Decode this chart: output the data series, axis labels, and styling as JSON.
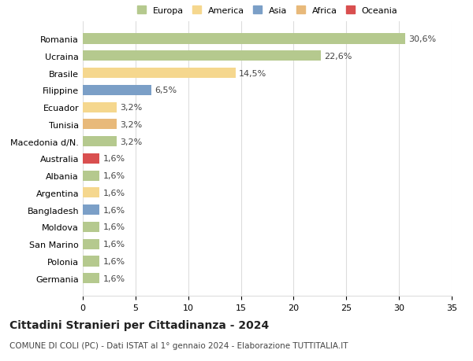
{
  "countries": [
    "Romania",
    "Ucraina",
    "Brasile",
    "Filippine",
    "Ecuador",
    "Tunisia",
    "Macedonia d/N.",
    "Australia",
    "Albania",
    "Argentina",
    "Bangladesh",
    "Moldova",
    "San Marino",
    "Polonia",
    "Germania"
  ],
  "values": [
    30.6,
    22.6,
    14.5,
    6.5,
    3.2,
    3.2,
    3.2,
    1.6,
    1.6,
    1.6,
    1.6,
    1.6,
    1.6,
    1.6,
    1.6
  ],
  "labels": [
    "30,6%",
    "22,6%",
    "14,5%",
    "6,5%",
    "3,2%",
    "3,2%",
    "3,2%",
    "1,6%",
    "1,6%",
    "1,6%",
    "1,6%",
    "1,6%",
    "1,6%",
    "1,6%",
    "1,6%"
  ],
  "colors": [
    "#b5c98e",
    "#b5c98e",
    "#f5d78e",
    "#7b9fc7",
    "#f5d78e",
    "#e8b97a",
    "#b5c98e",
    "#d94f4f",
    "#b5c98e",
    "#f5d78e",
    "#7b9fc7",
    "#b5c98e",
    "#b5c98e",
    "#b5c98e",
    "#b5c98e"
  ],
  "legend": [
    {
      "label": "Europa",
      "color": "#b5c98e"
    },
    {
      "label": "America",
      "color": "#f5d78e"
    },
    {
      "label": "Asia",
      "color": "#7b9fc7"
    },
    {
      "label": "Africa",
      "color": "#e8b97a"
    },
    {
      "label": "Oceania",
      "color": "#d94f4f"
    }
  ],
  "xlim": [
    0,
    35
  ],
  "xticks": [
    0,
    5,
    10,
    15,
    20,
    25,
    30,
    35
  ],
  "title": "Cittadini Stranieri per Cittadinanza - 2024",
  "subtitle": "COMUNE DI COLI (PC) - Dati ISTAT al 1° gennaio 2024 - Elaborazione TUTTITALIA.IT",
  "title_fontsize": 10,
  "subtitle_fontsize": 7.5,
  "label_fontsize": 8,
  "tick_fontsize": 8,
  "bg_color": "#ffffff",
  "grid_color": "#dddddd"
}
